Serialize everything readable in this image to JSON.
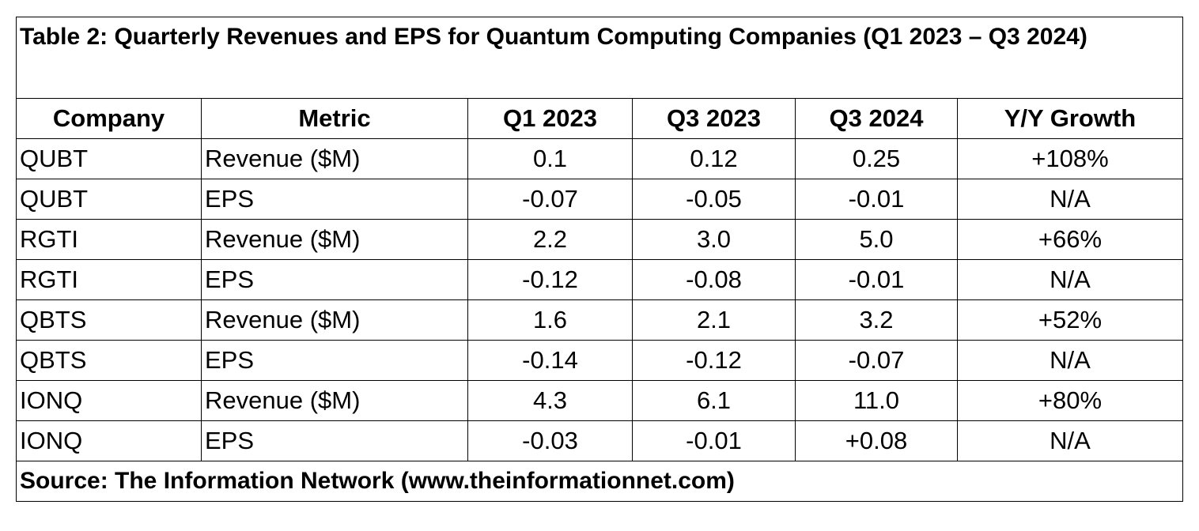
{
  "caption": "Table 2: Quarterly Revenues and EPS for Quantum Computing Companies (Q1 2023 – Q3 2024)",
  "columns": [
    "Company",
    "Metric",
    "Q1 2023",
    "Q3 2023",
    "Q3 2024",
    "Y/Y Growth"
  ],
  "rows": [
    [
      "QUBT",
      "Revenue ($M)",
      "0.1",
      "0.12",
      "0.25",
      "+108%"
    ],
    [
      "QUBT",
      "EPS",
      "-0.07",
      "-0.05",
      "-0.01",
      "N/A"
    ],
    [
      "RGTI",
      "Revenue ($M)",
      "2.2",
      "3.0",
      "5.0",
      "+66%"
    ],
    [
      "RGTI",
      "EPS",
      "-0.12",
      "-0.08",
      "-0.01",
      "N/A"
    ],
    [
      "QBTS",
      "Revenue ($M)",
      "1.6",
      "2.1",
      "3.2",
      "+52%"
    ],
    [
      "QBTS",
      "EPS",
      "-0.14",
      "-0.12",
      "-0.07",
      "N/A"
    ],
    [
      "IONQ",
      "Revenue ($M)",
      "4.3",
      "6.1",
      "11.0",
      "+80%"
    ],
    [
      "IONQ",
      "EPS",
      "-0.03",
      "-0.01",
      "+0.08",
      "N/A"
    ]
  ],
  "source": "Source: The Information Network (www.theinformationnet.com)"
}
